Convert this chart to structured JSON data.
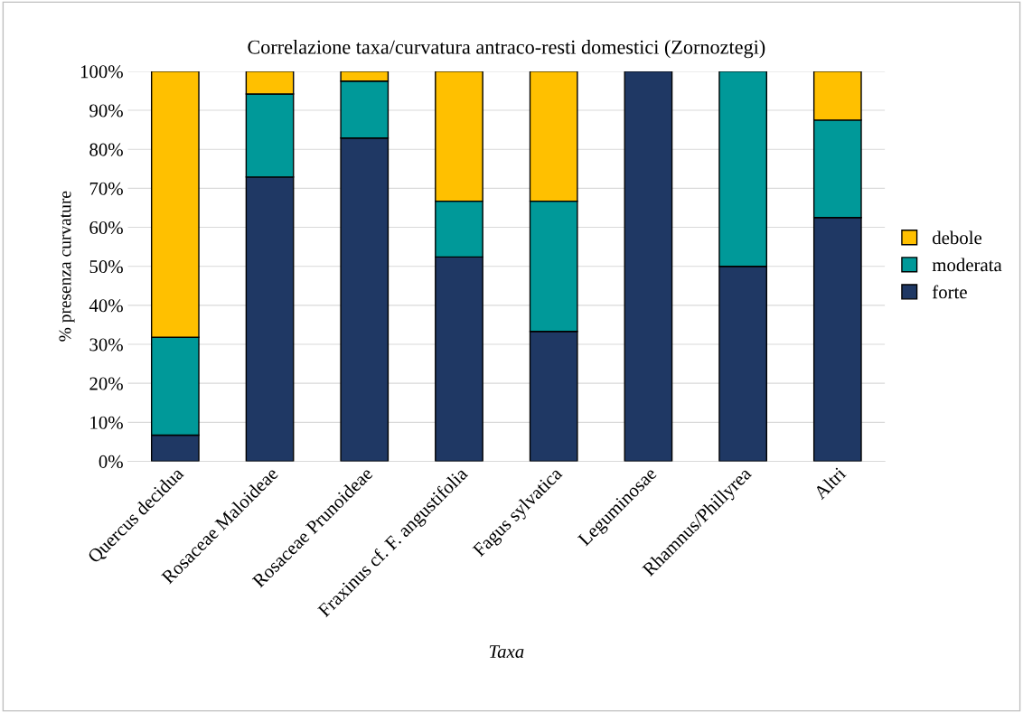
{
  "chart_data": {
    "type": "bar",
    "stacked": true,
    "title": "Correlazione taxa/curvatura antraco-resti domestici (Zornoztegi)",
    "xlabel": "Taxa",
    "ylabel": "% presenza curvature",
    "categories": [
      "Quercus decidua",
      "Rosaceae Maloideae",
      "Rosaceae Prunoideae",
      "Fraxinus cf. F. angustifolia",
      "Fagus sylvatica",
      "Leguminosae",
      "Rhamnus/Phillyrea",
      "Altri"
    ],
    "series": [
      {
        "name": "forte",
        "color": "#1f3864",
        "values": [
          6.7,
          72.9,
          82.9,
          52.4,
          33.3,
          100,
          50,
          62.5
        ]
      },
      {
        "name": "moderata",
        "color": "#009999",
        "values": [
          25.1,
          21.3,
          14.6,
          14.3,
          33.4,
          null,
          50,
          25
        ]
      },
      {
        "name": "debole",
        "color": "#ffc000",
        "values": [
          68.2,
          5.8,
          2.5,
          33.3,
          33.3,
          null,
          null,
          12.5
        ]
      }
    ],
    "ylim": [
      0,
      100
    ],
    "yticks": [
      {
        "value": 0,
        "label": "0%"
      },
      {
        "value": 10,
        "label": "10%"
      },
      {
        "value": 20,
        "label": "20%"
      },
      {
        "value": 30,
        "label": "30%"
      },
      {
        "value": 40,
        "label": "40%"
      },
      {
        "value": 50,
        "label": "50%"
      },
      {
        "value": 60,
        "label": "60%"
      },
      {
        "value": 70,
        "label": "70%"
      },
      {
        "value": 80,
        "label": "80%"
      },
      {
        "value": 90,
        "label": "90%"
      },
      {
        "value": 100,
        "label": "100%"
      }
    ],
    "grid": "y",
    "legend": "right"
  }
}
